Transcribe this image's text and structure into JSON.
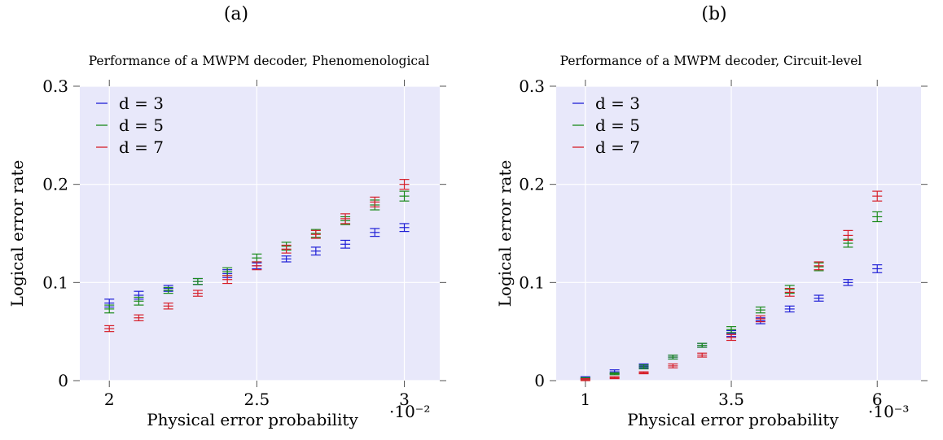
{
  "chart_data": [
    {
      "panel_label": "(a)",
      "type": "scatter",
      "title": "Performance of a MWPM decoder, Phenomenological",
      "xlabel": "Physical error probability",
      "xscale_label": "·10⁻²",
      "ylabel": "Logical error rate",
      "xlim": [
        1.9,
        3.12
      ],
      "ylim": [
        0,
        0.3
      ],
      "xticks": [
        2,
        2.5,
        3
      ],
      "xtick_labels": [
        "2",
        "2.5",
        "3"
      ],
      "yticks": [
        0,
        0.1,
        0.2,
        0.3
      ],
      "ytick_labels": [
        "0",
        "0.1",
        "0.2",
        "0.3"
      ],
      "grid": true,
      "legend_position": "top-left",
      "x": [
        2.0,
        2.1,
        2.2,
        2.3,
        2.4,
        2.5,
        2.6,
        2.7,
        2.8,
        2.9,
        3.0
      ],
      "series": [
        {
          "name": "d = 3",
          "color": "#1f1fd6",
          "values": [
            0.079,
            0.087,
            0.094,
            0.101,
            0.109,
            0.117,
            0.124,
            0.132,
            0.139,
            0.151,
            0.156
          ],
          "err": [
            0.004,
            0.004,
            0.003,
            0.003,
            0.004,
            0.003,
            0.003,
            0.004,
            0.004,
            0.004,
            0.004
          ]
        },
        {
          "name": "d = 5",
          "color": "#1a8a1a",
          "values": [
            0.073,
            0.081,
            0.092,
            0.101,
            0.111,
            0.125,
            0.137,
            0.15,
            0.163,
            0.179,
            0.188
          ],
          "err": [
            0.004,
            0.004,
            0.003,
            0.003,
            0.004,
            0.004,
            0.004,
            0.004,
            0.004,
            0.005,
            0.005
          ]
        },
        {
          "name": "d = 7",
          "color": "#d61f2a",
          "values": [
            0.053,
            0.064,
            0.076,
            0.089,
            0.103,
            0.117,
            0.134,
            0.149,
            0.165,
            0.182,
            0.2
          ],
          "err": [
            0.003,
            0.003,
            0.003,
            0.003,
            0.004,
            0.004,
            0.004,
            0.004,
            0.005,
            0.005,
            0.005
          ]
        }
      ]
    },
    {
      "panel_label": "(b)",
      "type": "scatter",
      "title": "Performance of a MWPM decoder, Circuit-level",
      "xlabel": "Physical error probability",
      "xscale_label": "·10⁻³",
      "ylabel": "Logical error rate",
      "xlim": [
        0.5,
        6.75
      ],
      "ylim": [
        0,
        0.3
      ],
      "xticks": [
        1,
        3.5,
        6
      ],
      "xtick_labels": [
        "1",
        "3.5",
        "6"
      ],
      "yticks": [
        0,
        0.1,
        0.2,
        0.3
      ],
      "ytick_labels": [
        "0",
        "0.1",
        "0.2",
        "0.3"
      ],
      "grid": true,
      "legend_position": "top-left",
      "x": [
        1.0,
        1.5,
        2.0,
        2.5,
        3.0,
        3.5,
        4.0,
        4.5,
        5.0,
        5.5,
        6.0
      ],
      "series": [
        {
          "name": "d = 3",
          "color": "#1f1fd6",
          "values": [
            0.003,
            0.009,
            0.015,
            0.024,
            0.036,
            0.048,
            0.061,
            0.073,
            0.084,
            0.1,
            0.114
          ],
          "err": [
            0.001,
            0.002,
            0.002,
            0.002,
            0.002,
            0.003,
            0.003,
            0.003,
            0.003,
            0.003,
            0.004
          ]
        },
        {
          "name": "d = 5",
          "color": "#1a8a1a",
          "values": [
            0.002,
            0.007,
            0.014,
            0.024,
            0.036,
            0.052,
            0.072,
            0.093,
            0.116,
            0.14,
            0.167
          ],
          "err": [
            0.001,
            0.001,
            0.002,
            0.002,
            0.002,
            0.003,
            0.003,
            0.004,
            0.004,
            0.004,
            0.005
          ]
        },
        {
          "name": "d = 7",
          "color": "#d61f2a",
          "values": [
            0.001,
            0.003,
            0.008,
            0.015,
            0.026,
            0.044,
            0.063,
            0.09,
            0.117,
            0.148,
            0.188
          ],
          "err": [
            0.001,
            0.001,
            0.001,
            0.002,
            0.002,
            0.003,
            0.003,
            0.004,
            0.004,
            0.005,
            0.005
          ]
        }
      ]
    }
  ]
}
